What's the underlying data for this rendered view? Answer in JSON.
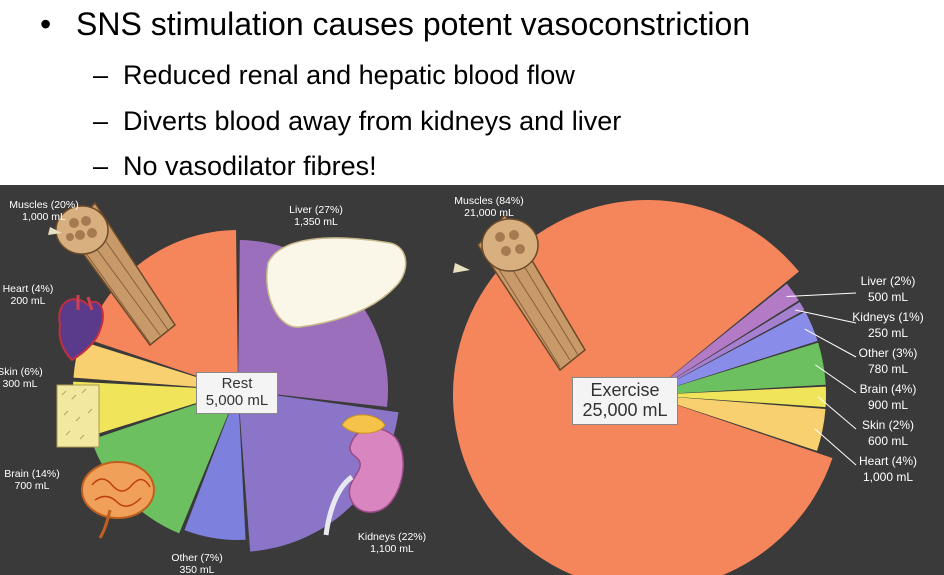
{
  "slide": {
    "bullet": "SNS stimulation causes potent vasoconstriction",
    "subbullets": [
      "Reduced renal and hepatic blood flow",
      "Diverts blood away from kidneys and liver",
      "No vasodilator fibres!"
    ]
  },
  "rest_chart": {
    "center_title": "Rest",
    "center_total": "5,000 mL",
    "slices": [
      {
        "name": "Muscles",
        "pct": "20%",
        "ml": "1,000 mL",
        "value": 20,
        "color": "#f5855a"
      },
      {
        "name": "Liver",
        "pct": "27%",
        "ml": "1,350 mL",
        "value": 27,
        "color": "#9b6fbb"
      },
      {
        "name": "Kidneys",
        "pct": "22%",
        "ml": "1,100 mL",
        "value": 22,
        "color": "#8a75c9"
      },
      {
        "name": "Other",
        "pct": "7%",
        "ml": "350 mL",
        "value": 7,
        "color": "#7e80dd"
      },
      {
        "name": "Brain",
        "pct": "14%",
        "ml": "700 mL",
        "value": 14,
        "color": "#6cc060"
      },
      {
        "name": "Skin",
        "pct": "6%",
        "ml": "300 mL",
        "value": 6,
        "color": "#f0e45a"
      },
      {
        "name": "Heart",
        "pct": "4%",
        "ml": "200 mL",
        "value": 4,
        "color": "#f8d070"
      }
    ]
  },
  "exercise_chart": {
    "center_title": "Exercise",
    "center_total": "25,000 mL",
    "slices": [
      {
        "name": "Muscles",
        "pct": "84%",
        "ml": "21,000 mL",
        "value": 84,
        "color": "#f5855a"
      },
      {
        "name": "Liver",
        "pct": "2%",
        "ml": "500 mL",
        "value": 2,
        "color": "#b37ac6"
      },
      {
        "name": "Kidneys",
        "pct": "1%",
        "ml": "250 mL",
        "value": 1,
        "color": "#a57fd0"
      },
      {
        "name": "Other",
        "pct": "3%",
        "ml": "780 mL",
        "value": 3,
        "color": "#8a8cea"
      },
      {
        "name": "Brain",
        "pct": "4%",
        "ml": "900 mL",
        "value": 4,
        "color": "#6cc060"
      },
      {
        "name": "Skin",
        "pct": "2%",
        "ml": "600 mL",
        "value": 2,
        "color": "#f0e45a"
      },
      {
        "name": "Heart",
        "pct": "4%",
        "ml": "1,000 mL",
        "value": 4,
        "color": "#f8d070"
      }
    ]
  },
  "colors": {
    "figure_background": "#3a3a3a",
    "label_text": "#ffffff"
  }
}
